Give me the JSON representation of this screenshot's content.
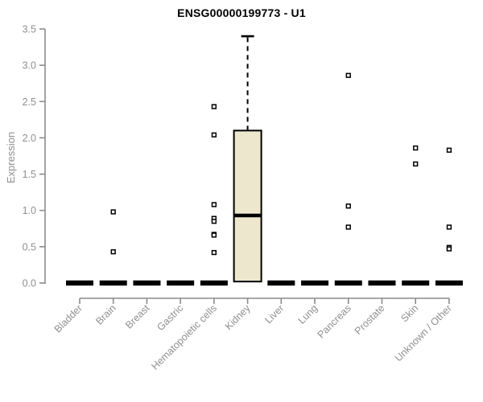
{
  "chart_data": {
    "type": "box",
    "title": "ENSG00000199773 - U1",
    "ylabel": "Expression",
    "xlabel": "",
    "ylim": [
      0,
      3.5
    ],
    "yticks": [
      0,
      0.5,
      1,
      1.5,
      2,
      2.5,
      3,
      3.5
    ],
    "grid": false,
    "legend": "none",
    "categories": [
      "Bladder",
      "Brain",
      "Breast",
      "Gastric",
      "Hematopoietic cells",
      "Kidney",
      "Liver",
      "Lung",
      "Pancreas",
      "Prostate",
      "Skin",
      "Unknown / Other"
    ],
    "boxes": [
      {
        "category": "Bladder",
        "low": 0,
        "q1": 0,
        "median": 0,
        "q3": 0,
        "high": 0,
        "outliers": []
      },
      {
        "category": "Brain",
        "low": 0,
        "q1": 0,
        "median": 0,
        "q3": 0,
        "high": 0,
        "outliers": [
          0.98,
          0.43
        ]
      },
      {
        "category": "Breast",
        "low": 0,
        "q1": 0,
        "median": 0,
        "q3": 0,
        "high": 0,
        "outliers": []
      },
      {
        "category": "Gastric",
        "low": 0,
        "q1": 0,
        "median": 0,
        "q3": 0,
        "high": 0,
        "outliers": []
      },
      {
        "category": "Hematopoietic cells",
        "low": 0,
        "q1": 0,
        "median": 0,
        "q3": 0,
        "high": 0,
        "outliers": [
          2.43,
          2.04,
          1.08,
          0.89,
          0.85,
          0.67,
          0.66,
          0.42
        ]
      },
      {
        "category": "Kidney",
        "low": 0,
        "q1": 0.02,
        "median": 0.93,
        "q3": 2.1,
        "high": 3.4,
        "outliers": []
      },
      {
        "category": "Liver",
        "low": 0,
        "q1": 0,
        "median": 0,
        "q3": 0,
        "high": 0,
        "outliers": []
      },
      {
        "category": "Lung",
        "low": 0,
        "q1": 0,
        "median": 0,
        "q3": 0,
        "high": 0,
        "outliers": []
      },
      {
        "category": "Pancreas",
        "low": 0,
        "q1": 0,
        "median": 0,
        "q3": 0,
        "high": 0,
        "outliers": [
          2.86,
          1.06,
          0.77
        ]
      },
      {
        "category": "Prostate",
        "low": 0,
        "q1": 0,
        "median": 0,
        "q3": 0,
        "high": 0,
        "outliers": []
      },
      {
        "category": "Skin",
        "low": 0,
        "q1": 0,
        "median": 0,
        "q3": 0,
        "high": 0,
        "outliers": [
          1.86,
          1.64
        ]
      },
      {
        "category": "Unknown / Other",
        "low": 0,
        "q1": 0,
        "median": 0,
        "q3": 0,
        "high": 0,
        "outliers": [
          1.83,
          0.77,
          0.49,
          0.47
        ]
      }
    ],
    "colors": {
      "box_fill": "#EDE8CD",
      "box_border": "#000000",
      "median": "#000000",
      "collapsed_box": "#000000",
      "outlier": "#000000",
      "axis": "#8C8C8C",
      "tick_label": "#8F8F8F",
      "title": "#000000"
    }
  }
}
